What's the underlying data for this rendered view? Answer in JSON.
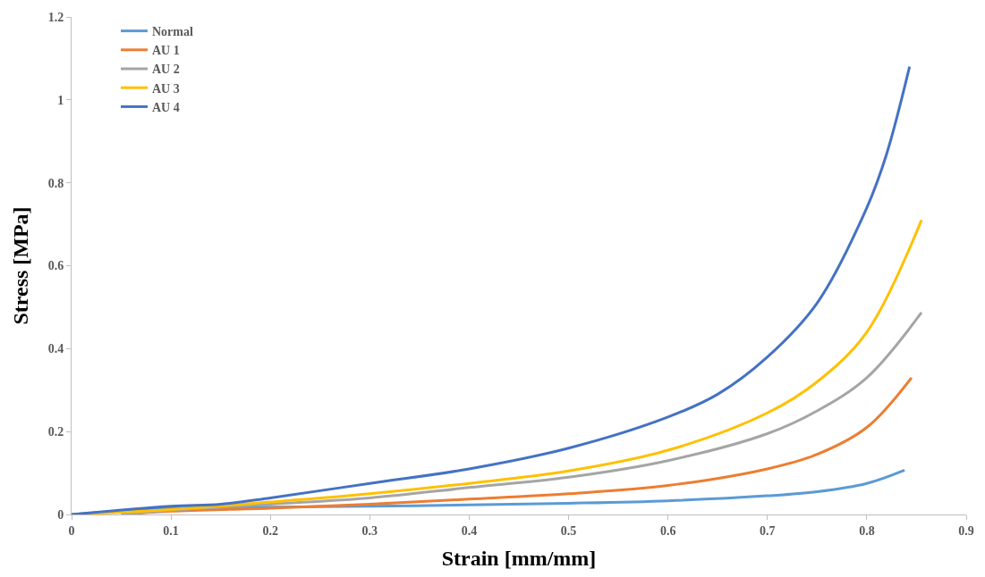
{
  "chart_data": {
    "type": "line",
    "xlabel": "Strain [mm/mm]",
    "ylabel": "Stress [MPa]",
    "xlim": [
      0,
      0.9
    ],
    "xticks": [
      0,
      0.1,
      0.2,
      0.3,
      0.4,
      0.5,
      0.6,
      0.7,
      0.8,
      0.9
    ],
    "ylim": [
      0,
      1.2
    ],
    "yticks": [
      0,
      0.2,
      0.4,
      0.6,
      0.8,
      1,
      1.2
    ],
    "legend": "top left",
    "marker": "none",
    "line_style": "solid",
    "series": [
      {
        "name": "Normal",
        "color": "#5b9bd5",
        "x": [
          0,
          0.1,
          0.2,
          0.3,
          0.4,
          0.5,
          0.6,
          0.7,
          0.75,
          0.8,
          0.838
        ],
        "values": [
          0,
          0.015,
          0.018,
          0.02,
          0.023,
          0.027,
          0.033,
          0.045,
          0.055,
          0.075,
          0.107
        ]
      },
      {
        "name": "AU 1",
        "color": "#ed7d31",
        "x": [
          0.05,
          0.1,
          0.2,
          0.3,
          0.4,
          0.5,
          0.6,
          0.7,
          0.75,
          0.8,
          0.845
        ],
        "values": [
          0,
          0.008,
          0.015,
          0.025,
          0.037,
          0.05,
          0.07,
          0.11,
          0.145,
          0.21,
          0.33
        ]
      },
      {
        "name": "AU 2",
        "color": "#a5a5a5",
        "x": [
          0.05,
          0.1,
          0.2,
          0.3,
          0.4,
          0.5,
          0.6,
          0.7,
          0.75,
          0.8,
          0.855
        ],
        "values": [
          0,
          0.01,
          0.025,
          0.04,
          0.065,
          0.09,
          0.13,
          0.195,
          0.25,
          0.33,
          0.487
        ]
      },
      {
        "name": "AU 3",
        "color": "#ffc000",
        "x": [
          0,
          0.1,
          0.2,
          0.3,
          0.4,
          0.5,
          0.6,
          0.7,
          0.75,
          0.8,
          0.855
        ],
        "values": [
          0,
          0.012,
          0.03,
          0.05,
          0.075,
          0.105,
          0.155,
          0.245,
          0.32,
          0.44,
          0.71
        ]
      },
      {
        "name": "AU 4",
        "color": "#4472c4",
        "x": [
          0,
          0.1,
          0.15,
          0.2,
          0.3,
          0.4,
          0.5,
          0.6,
          0.65,
          0.7,
          0.75,
          0.8,
          0.82,
          0.843
        ],
        "values": [
          0,
          0.02,
          0.025,
          0.04,
          0.075,
          0.11,
          0.16,
          0.235,
          0.29,
          0.38,
          0.51,
          0.74,
          0.87,
          1.08
        ]
      }
    ]
  }
}
